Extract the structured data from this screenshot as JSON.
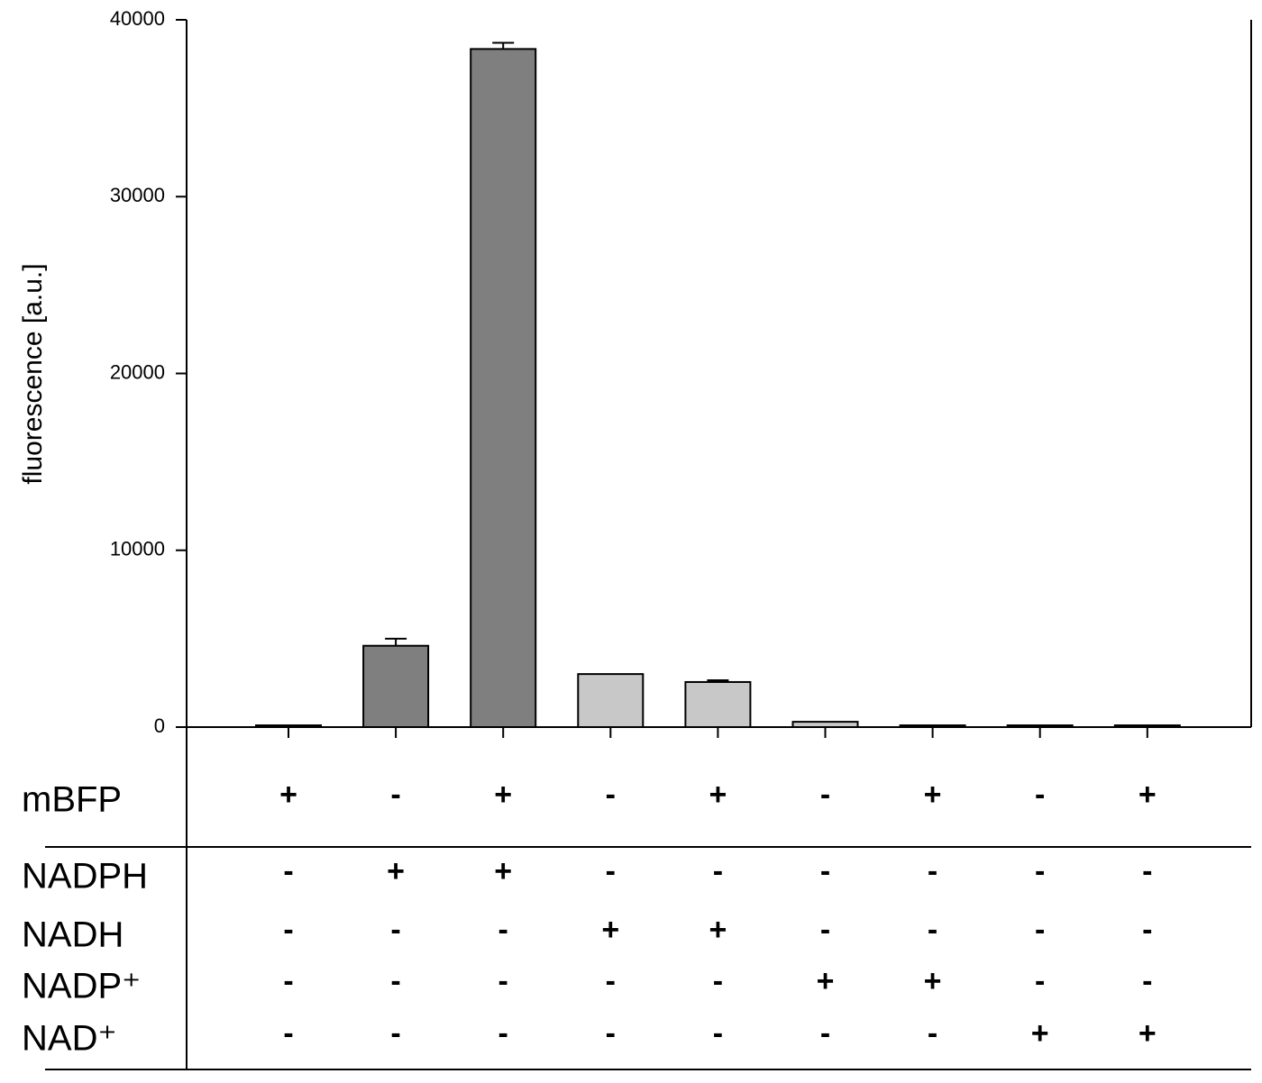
{
  "chart_data": {
    "type": "bar",
    "y_label": "fluorescence [a.u.]",
    "categories": [
      null,
      null,
      null,
      null,
      null,
      null,
      null,
      null,
      null
    ],
    "values": [
      100,
      4600,
      38350,
      3000,
      2550,
      300,
      100,
      100,
      100
    ],
    "errors": [
      null,
      400,
      350,
      null,
      100,
      null,
      null,
      null,
      null
    ],
    "colors": [
      "#7f7f7f",
      "#7f7f7f",
      "#7f7f7f",
      "#c8c8c8",
      "#c8c8c8",
      "#c8c8c8",
      "#c8c8c8",
      "#c8c8c8",
      "#c8c8c8"
    ],
    "ylim": [
      0,
      40000
    ],
    "yticks": [
      0,
      10000,
      20000,
      30000,
      40000
    ],
    "conditions": [
      {
        "label": "mBFP",
        "signs": [
          "+",
          "-",
          "+",
          "-",
          "+",
          "-",
          "+",
          "-",
          "+"
        ]
      },
      {
        "label": "NADPH",
        "signs": [
          "-",
          "+",
          "+",
          "-",
          "-",
          "-",
          "-",
          "-",
          "-"
        ]
      },
      {
        "label": "NADH",
        "signs": [
          "-",
          "-",
          "-",
          "+",
          "+",
          "-",
          "-",
          "-",
          "-"
        ]
      },
      {
        "label": "NADP⁺",
        "signs": [
          "-",
          "-",
          "-",
          "-",
          "-",
          "+",
          "+",
          "-",
          "-"
        ]
      },
      {
        "label": "NAD⁺",
        "signs": [
          "-",
          "-",
          "-",
          "-",
          "-",
          "-",
          "-",
          "+",
          "+"
        ]
      }
    ]
  }
}
